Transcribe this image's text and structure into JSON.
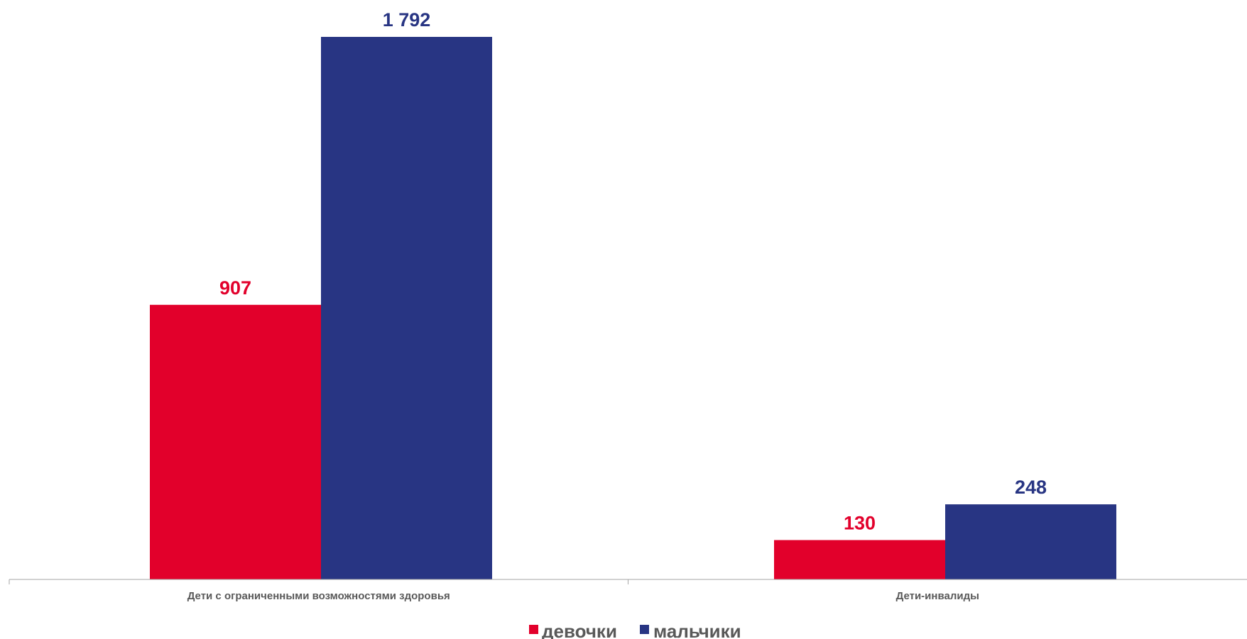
{
  "chart_data": {
    "type": "bar",
    "categories": [
      "Дети с ограниченными возможностями здоровья",
      "Дети-инвалиды"
    ],
    "series": [
      {
        "name": "девочки",
        "color": "#E2002B",
        "values": [
          907,
          130
        ],
        "value_labels": [
          "907",
          "130"
        ]
      },
      {
        "name": "мальчики",
        "color": "#283583",
        "values": [
          1792,
          248
        ],
        "value_labels": [
          "1 792",
          "248"
        ]
      }
    ],
    "title": "",
    "xlabel": "",
    "ylabel": "",
    "ylim": [
      0,
      1792
    ],
    "grid": false,
    "legend_position": "bottom"
  }
}
